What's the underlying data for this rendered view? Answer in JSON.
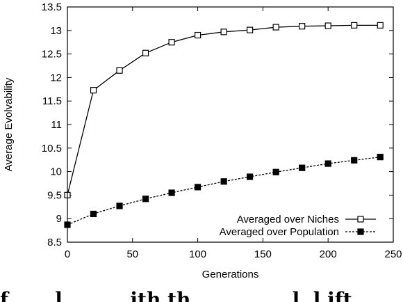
{
  "caption_fragment": "f... ...l... ... ..ith th... ... .. . ..l .l.ift...",
  "chart_data": {
    "type": "line",
    "title": "",
    "xlabel": "Generations",
    "ylabel": "Average Evolvability",
    "xlim": [
      0,
      250
    ],
    "ylim": [
      8.5,
      13.5
    ],
    "x_ticks": [
      0,
      50,
      100,
      150,
      200,
      250
    ],
    "y_ticks": [
      8.5,
      9,
      9.5,
      10,
      10.5,
      11,
      11.5,
      12,
      12.5,
      13,
      13.5
    ],
    "grid": false,
    "legend_position": "bottom-right",
    "series": [
      {
        "name": "Averaged over Niches",
        "marker": "open-square",
        "line_style": "solid",
        "x": [
          0,
          20,
          40,
          60,
          80,
          100,
          120,
          140,
          160,
          180,
          200,
          220,
          240
        ],
        "y": [
          9.5,
          11.73,
          12.15,
          12.52,
          12.75,
          12.9,
          12.97,
          13.01,
          13.07,
          13.09,
          13.1,
          13.11,
          13.11
        ]
      },
      {
        "name": "Averaged over Population",
        "marker": "filled-square",
        "line_style": "dashed",
        "x": [
          0,
          20,
          40,
          60,
          80,
          100,
          120,
          140,
          160,
          180,
          200,
          220,
          240
        ],
        "y": [
          8.87,
          9.1,
          9.27,
          9.42,
          9.55,
          9.67,
          9.79,
          9.89,
          9.99,
          10.08,
          10.17,
          10.24,
          10.31
        ]
      }
    ]
  }
}
